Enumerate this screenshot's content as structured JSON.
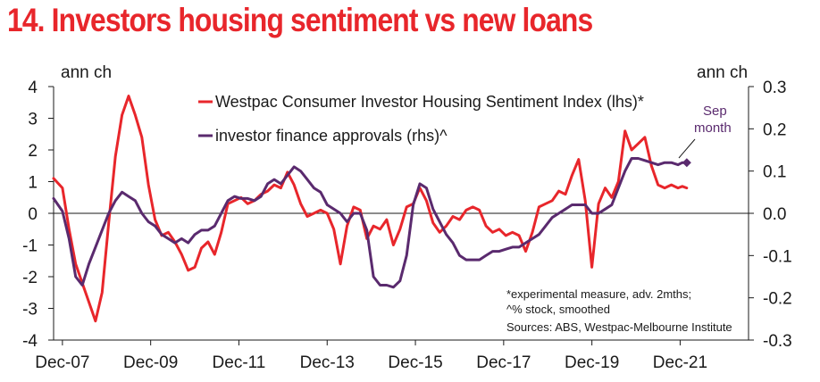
{
  "title": "14. Investors housing sentiment vs new loans",
  "colors": {
    "title": "#e8262b",
    "lhs_series": "#e8262b",
    "rhs_series": "#5a2a6e",
    "axis": "#1a1a1a"
  },
  "chart_data": {
    "type": "line",
    "title": "14. Investors housing sentiment vs new loans",
    "ylabel_left": "ann ch",
    "ylabel_right": "ann ch",
    "ylim_left": [
      -4,
      4
    ],
    "ylim_right": [
      -0.3,
      0.3
    ],
    "yticks_left": [
      "4",
      "3",
      "2",
      "1",
      "0",
      "-1",
      "-2",
      "-3",
      "-4"
    ],
    "yticks_right": [
      "0.3",
      "0.2",
      "0.1",
      "0.0",
      "-0.1",
      "-0.2",
      "-0.3"
    ],
    "x_range": [
      2007.75,
      2023.5
    ],
    "xticks": [
      {
        "label": "Dec-07",
        "x": 2007.95
      },
      {
        "label": "Dec-09",
        "x": 2009.95
      },
      {
        "label": "Dec-11",
        "x": 2011.95
      },
      {
        "label": "Dec-13",
        "x": 2013.95
      },
      {
        "label": "Dec-15",
        "x": 2015.95
      },
      {
        "label": "Dec-17",
        "x": 2017.95
      },
      {
        "label": "Dec-19",
        "x": 2019.95
      },
      {
        "label": "Dec-21",
        "x": 2021.95
      }
    ],
    "series": [
      {
        "name": "Westpac Consumer Investor Housing Sentiment Index (lhs)*",
        "axis": "left",
        "x": [
          2007.75,
          2007.95,
          2008.1,
          2008.25,
          2008.4,
          2008.55,
          2008.7,
          2008.85,
          2009.0,
          2009.15,
          2009.3,
          2009.45,
          2009.6,
          2009.75,
          2009.9,
          2010.05,
          2010.2,
          2010.35,
          2010.5,
          2010.65,
          2010.8,
          2010.95,
          2011.1,
          2011.25,
          2011.4,
          2011.55,
          2011.7,
          2011.85,
          2012.0,
          2012.15,
          2012.3,
          2012.45,
          2012.6,
          2012.75,
          2012.9,
          2013.05,
          2013.2,
          2013.35,
          2013.5,
          2013.65,
          2013.8,
          2013.95,
          2014.1,
          2014.25,
          2014.4,
          2014.55,
          2014.7,
          2014.85,
          2015.0,
          2015.15,
          2015.3,
          2015.45,
          2015.6,
          2015.75,
          2015.9,
          2016.05,
          2016.2,
          2016.35,
          2016.5,
          2016.65,
          2016.8,
          2016.95,
          2017.1,
          2017.25,
          2017.4,
          2017.55,
          2017.7,
          2017.85,
          2018.0,
          2018.15,
          2018.3,
          2018.45,
          2018.6,
          2018.75,
          2018.9,
          2019.05,
          2019.2,
          2019.35,
          2019.5,
          2019.65,
          2019.8,
          2019.95,
          2020.1,
          2020.25,
          2020.4,
          2020.55,
          2020.7,
          2020.85,
          2021.0,
          2021.15,
          2021.3,
          2021.45,
          2021.6,
          2021.75,
          2021.9,
          2022.0,
          2022.1
        ],
        "y": [
          1.1,
          0.8,
          -0.5,
          -1.6,
          -2.2,
          -2.8,
          -3.4,
          -2.5,
          -0.3,
          1.8,
          3.1,
          3.7,
          3.1,
          2.4,
          0.9,
          -0.2,
          -0.7,
          -0.6,
          -0.9,
          -1.3,
          -1.8,
          -1.7,
          -1.1,
          -0.9,
          -1.3,
          -0.6,
          0.3,
          0.4,
          0.5,
          0.3,
          0.4,
          0.6,
          0.7,
          0.9,
          0.8,
          1.3,
          0.9,
          0.3,
          -0.1,
          0.0,
          0.1,
          0.0,
          -0.5,
          -1.6,
          -0.4,
          0.2,
          0.1,
          -0.8,
          -0.4,
          -0.5,
          -0.2,
          -1.0,
          -0.5,
          0.2,
          0.3,
          0.8,
          0.4,
          -0.3,
          -0.6,
          -0.4,
          -0.1,
          -0.2,
          0.1,
          0.2,
          0.1,
          -0.4,
          -0.6,
          -0.5,
          -0.7,
          -0.6,
          -0.7,
          -1.2,
          -0.6,
          0.2,
          0.3,
          0.4,
          0.7,
          0.6,
          1.2,
          1.7,
          0.4,
          -1.7,
          0.3,
          0.8,
          0.5,
          1.0,
          2.6,
          2.0,
          2.2,
          2.4,
          1.5,
          0.9,
          0.8,
          0.9,
          0.8,
          0.85,
          0.8
        ]
      },
      {
        "name": "investor finance approvals (rhs)^",
        "axis": "right",
        "x": [
          2007.75,
          2007.95,
          2008.1,
          2008.25,
          2008.4,
          2008.55,
          2008.7,
          2008.85,
          2009.0,
          2009.15,
          2009.3,
          2009.45,
          2009.6,
          2009.75,
          2009.9,
          2010.05,
          2010.2,
          2010.35,
          2010.5,
          2010.65,
          2010.8,
          2010.95,
          2011.1,
          2011.25,
          2011.4,
          2011.55,
          2011.7,
          2011.85,
          2012.0,
          2012.15,
          2012.3,
          2012.45,
          2012.6,
          2012.75,
          2012.9,
          2013.05,
          2013.2,
          2013.35,
          2013.5,
          2013.65,
          2013.8,
          2013.95,
          2014.1,
          2014.25,
          2014.4,
          2014.55,
          2014.7,
          2014.85,
          2015.0,
          2015.15,
          2015.3,
          2015.45,
          2015.6,
          2015.75,
          2015.9,
          2016.05,
          2016.2,
          2016.35,
          2016.5,
          2016.65,
          2016.8,
          2016.95,
          2017.1,
          2017.25,
          2017.4,
          2017.55,
          2017.7,
          2017.85,
          2018.0,
          2018.15,
          2018.3,
          2018.45,
          2018.6,
          2018.75,
          2018.9,
          2019.05,
          2019.2,
          2019.35,
          2019.5,
          2019.65,
          2019.8,
          2019.95,
          2020.1,
          2020.25,
          2020.4,
          2020.55,
          2020.7,
          2020.85,
          2021.0,
          2021.15,
          2021.3,
          2021.45,
          2021.6,
          2021.75,
          2021.9,
          2022.0,
          2022.1
        ],
        "y": [
          0.035,
          0.005,
          -0.06,
          -0.15,
          -0.17,
          -0.12,
          -0.08,
          -0.04,
          0.0,
          0.03,
          0.05,
          0.04,
          0.03,
          0.0,
          -0.02,
          -0.03,
          -0.05,
          -0.06,
          -0.07,
          -0.06,
          -0.07,
          -0.05,
          -0.04,
          -0.04,
          -0.03,
          0.0,
          0.03,
          0.04,
          0.035,
          0.035,
          0.03,
          0.04,
          0.07,
          0.08,
          0.07,
          0.09,
          0.11,
          0.1,
          0.08,
          0.06,
          0.05,
          0.02,
          0.01,
          0.0,
          -0.02,
          0.0,
          0.0,
          -0.04,
          -0.15,
          -0.17,
          -0.17,
          -0.175,
          -0.16,
          -0.1,
          0.02,
          0.07,
          0.06,
          0.01,
          -0.02,
          -0.05,
          -0.07,
          -0.1,
          -0.11,
          -0.11,
          -0.11,
          -0.1,
          -0.09,
          -0.09,
          -0.085,
          -0.08,
          -0.08,
          -0.07,
          -0.06,
          -0.05,
          -0.03,
          -0.01,
          0.0,
          0.01,
          0.02,
          0.02,
          0.02,
          0.0,
          0.0,
          0.01,
          0.02,
          0.06,
          0.1,
          0.13,
          0.13,
          0.125,
          0.12,
          0.115,
          0.12,
          0.12,
          0.115,
          0.12,
          0.12
        ]
      }
    ],
    "annotations": {
      "sep_month": [
        "Sep",
        "month"
      ],
      "notes": [
        "*experimental measure, adv. 2mths;",
        "^% stock, smoothed",
        "Sources: ABS, Westpac-Melbourne Institute"
      ]
    }
  }
}
